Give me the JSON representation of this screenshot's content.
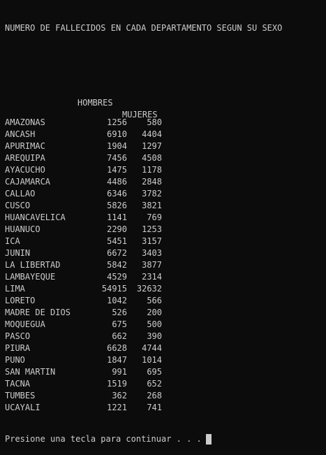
{
  "title": "NUMERO DE FALLECIDOS EN CADA DEPARTAMENTO SEGUN SU SEXO",
  "headers": {
    "hombres": "HOMBRES",
    "mujeres": "MUJERES"
  },
  "rows": [
    {
      "dept": "AMAZONAS",
      "hombres": "1256",
      "mujeres": "580"
    },
    {
      "dept": "ANCASH",
      "hombres": "6910",
      "mujeres": "4404"
    },
    {
      "dept": "APURIMAC",
      "hombres": "1904",
      "mujeres": "1297"
    },
    {
      "dept": "AREQUIPA",
      "hombres": "7456",
      "mujeres": "4508"
    },
    {
      "dept": "AYACUCHO",
      "hombres": "1475",
      "mujeres": "1178"
    },
    {
      "dept": "CAJAMARCA",
      "hombres": "4486",
      "mujeres": "2848"
    },
    {
      "dept": "CALLAO",
      "hombres": "6346",
      "mujeres": "3782"
    },
    {
      "dept": "CUSCO",
      "hombres": "5826",
      "mujeres": "3821"
    },
    {
      "dept": "HUANCAVELICA",
      "hombres": "1141",
      "mujeres": "769"
    },
    {
      "dept": "HUANUCO",
      "hombres": "2290",
      "mujeres": "1253"
    },
    {
      "dept": "ICA",
      "hombres": "5451",
      "mujeres": "3157"
    },
    {
      "dept": "JUNIN",
      "hombres": "6672",
      "mujeres": "3403"
    },
    {
      "dept": "LA LIBERTAD",
      "hombres": "5842",
      "mujeres": "3877"
    },
    {
      "dept": "LAMBAYEQUE",
      "hombres": "4529",
      "mujeres": "2314"
    },
    {
      "dept": "LIMA",
      "hombres": "54915",
      "mujeres": "32632"
    },
    {
      "dept": "LORETO",
      "hombres": "1042",
      "mujeres": "566"
    },
    {
      "dept": "MADRE DE DIOS",
      "hombres": "526",
      "mujeres": "200"
    },
    {
      "dept": "MOQUEGUA",
      "hombres": "675",
      "mujeres": "500"
    },
    {
      "dept": "PASCO",
      "hombres": "662",
      "mujeres": "390"
    },
    {
      "dept": "PIURA",
      "hombres": "6628",
      "mujeres": "4744"
    },
    {
      "dept": "PUNO",
      "hombres": "1847",
      "mujeres": "1014"
    },
    {
      "dept": "SAN MARTIN",
      "hombres": "991",
      "mujeres": "695"
    },
    {
      "dept": "TACNA",
      "hombres": "1519",
      "mujeres": "652"
    },
    {
      "dept": "TUMBES",
      "hombres": "362",
      "mujeres": "268"
    },
    {
      "dept": "UCAYALI",
      "hombres": "1221",
      "mujeres": "741"
    }
  ],
  "prompt": "Presione una tecla para continuar . . .",
  "colors": {
    "background": "#0c0c0c",
    "text": "#cccccc"
  }
}
